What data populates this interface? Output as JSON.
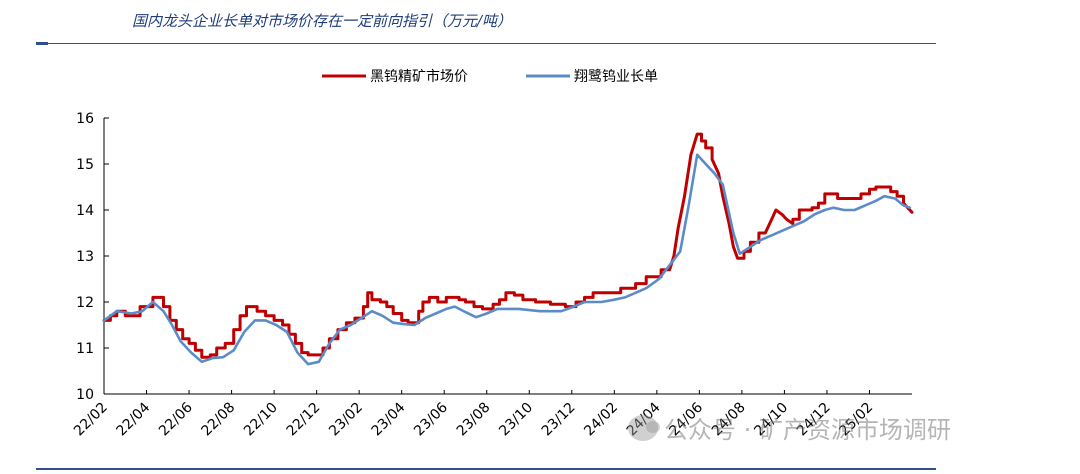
{
  "header": {
    "title": "国内龙头企业长单对市场价存在一定前向指引（万元/吨）"
  },
  "watermark": {
    "text": "公众号 · 矿产资源市场调研"
  },
  "chart_data": {
    "type": "line",
    "title": "国内龙头企业长单对市场价存在一定前向指引（万元/吨）",
    "xlabel": "",
    "ylabel": "",
    "ylim": [
      10,
      16
    ],
    "yticks": [
      10,
      11,
      12,
      13,
      14,
      15,
      16
    ],
    "x_range": [
      0,
      38.0
    ],
    "x_tick_labels": [
      "22/02",
      "22/04",
      "22/06",
      "22/08",
      "22/10",
      "22/12",
      "23/02",
      "23/04",
      "23/06",
      "23/08",
      "23/10",
      "23/12",
      "24/02",
      "24/04",
      "24/06",
      "24/08",
      "24/10",
      "24/12",
      "25/02"
    ],
    "x_tick_positions": [
      0,
      2,
      4,
      6,
      8,
      10,
      12,
      14,
      16,
      18,
      20,
      22,
      24,
      26,
      28,
      30,
      32,
      34,
      36
    ],
    "legend_position": "top-center",
    "grid": false,
    "series": [
      {
        "name": "黑钨精矿市场价",
        "color": "#c00000",
        "points": [
          [
            0,
            11.6
          ],
          [
            0.3,
            11.6
          ],
          [
            0.3,
            11.7
          ],
          [
            0.6,
            11.7
          ],
          [
            0.6,
            11.8
          ],
          [
            1.0,
            11.8
          ],
          [
            1.0,
            11.7
          ],
          [
            1.7,
            11.7
          ],
          [
            1.7,
            11.9
          ],
          [
            2.3,
            11.9
          ],
          [
            2.3,
            12.1
          ],
          [
            2.8,
            12.1
          ],
          [
            2.8,
            11.9
          ],
          [
            3.1,
            11.9
          ],
          [
            3.1,
            11.6
          ],
          [
            3.4,
            11.6
          ],
          [
            3.4,
            11.4
          ],
          [
            3.7,
            11.4
          ],
          [
            3.7,
            11.2
          ],
          [
            4.0,
            11.2
          ],
          [
            4.0,
            11.1
          ],
          [
            4.3,
            11.1
          ],
          [
            4.3,
            10.95
          ],
          [
            4.6,
            10.95
          ],
          [
            4.6,
            10.8
          ],
          [
            5.0,
            10.8
          ],
          [
            5.0,
            10.85
          ],
          [
            5.3,
            10.85
          ],
          [
            5.3,
            11.0
          ],
          [
            5.7,
            11.0
          ],
          [
            5.7,
            11.1
          ],
          [
            6.1,
            11.1
          ],
          [
            6.1,
            11.4
          ],
          [
            6.4,
            11.4
          ],
          [
            6.4,
            11.7
          ],
          [
            6.7,
            11.7
          ],
          [
            6.7,
            11.9
          ],
          [
            7.2,
            11.9
          ],
          [
            7.2,
            11.8
          ],
          [
            7.6,
            11.8
          ],
          [
            7.6,
            11.7
          ],
          [
            8.0,
            11.7
          ],
          [
            8.0,
            11.6
          ],
          [
            8.4,
            11.6
          ],
          [
            8.4,
            11.5
          ],
          [
            8.7,
            11.5
          ],
          [
            8.7,
            11.3
          ],
          [
            9.0,
            11.3
          ],
          [
            9.0,
            11.1
          ],
          [
            9.3,
            11.1
          ],
          [
            9.3,
            10.9
          ],
          [
            9.6,
            10.9
          ],
          [
            9.6,
            10.85
          ],
          [
            10.3,
            10.85
          ],
          [
            10.3,
            11.0
          ],
          [
            10.6,
            11.0
          ],
          [
            10.6,
            11.2
          ],
          [
            11.0,
            11.2
          ],
          [
            11.0,
            11.4
          ],
          [
            11.4,
            11.4
          ],
          [
            11.4,
            11.55
          ],
          [
            11.8,
            11.55
          ],
          [
            11.8,
            11.65
          ],
          [
            12.2,
            11.65
          ],
          [
            12.2,
            11.9
          ],
          [
            12.4,
            11.9
          ],
          [
            12.4,
            12.2
          ],
          [
            12.6,
            12.2
          ],
          [
            12.6,
            12.05
          ],
          [
            13.0,
            12.05
          ],
          [
            13.0,
            12.0
          ],
          [
            13.3,
            12.0
          ],
          [
            13.3,
            11.9
          ],
          [
            13.6,
            11.9
          ],
          [
            13.6,
            11.75
          ],
          [
            14.0,
            11.75
          ],
          [
            14.0,
            11.6
          ],
          [
            14.3,
            11.6
          ],
          [
            14.3,
            11.55
          ],
          [
            14.8,
            11.55
          ],
          [
            14.8,
            11.8
          ],
          [
            15.0,
            11.8
          ],
          [
            15.0,
            12.0
          ],
          [
            15.3,
            12.0
          ],
          [
            15.3,
            12.1
          ],
          [
            15.7,
            12.1
          ],
          [
            15.7,
            12.0
          ],
          [
            16.1,
            12.0
          ],
          [
            16.1,
            12.1
          ],
          [
            16.7,
            12.1
          ],
          [
            16.7,
            12.05
          ],
          [
            17.0,
            12.05
          ],
          [
            17.0,
            12.0
          ],
          [
            17.4,
            12.0
          ],
          [
            17.4,
            11.9
          ],
          [
            17.8,
            11.9
          ],
          [
            17.8,
            11.85
          ],
          [
            18.3,
            11.85
          ],
          [
            18.3,
            11.95
          ],
          [
            18.6,
            11.95
          ],
          [
            18.6,
            12.05
          ],
          [
            18.9,
            12.05
          ],
          [
            18.9,
            12.2
          ],
          [
            19.3,
            12.2
          ],
          [
            19.3,
            12.15
          ],
          [
            19.7,
            12.15
          ],
          [
            19.7,
            12.05
          ],
          [
            20.3,
            12.05
          ],
          [
            20.3,
            12.0
          ],
          [
            21.0,
            12.0
          ],
          [
            21.0,
            11.95
          ],
          [
            21.7,
            11.95
          ],
          [
            21.7,
            11.9
          ],
          [
            22.2,
            11.9
          ],
          [
            22.2,
            12.0
          ],
          [
            22.6,
            12.0
          ],
          [
            22.6,
            12.1
          ],
          [
            23.0,
            12.1
          ],
          [
            23.0,
            12.2
          ],
          [
            24.3,
            12.2
          ],
          [
            24.3,
            12.3
          ],
          [
            25.0,
            12.3
          ],
          [
            25.0,
            12.4
          ],
          [
            25.5,
            12.4
          ],
          [
            25.5,
            12.55
          ],
          [
            26.2,
            12.55
          ],
          [
            26.2,
            12.7
          ],
          [
            26.6,
            12.7
          ],
          [
            26.8,
            13.0
          ],
          [
            27.0,
            13.6
          ],
          [
            27.3,
            14.3
          ],
          [
            27.6,
            15.2
          ],
          [
            27.9,
            15.65
          ],
          [
            28.1,
            15.65
          ],
          [
            28.1,
            15.5
          ],
          [
            28.3,
            15.5
          ],
          [
            28.3,
            15.35
          ],
          [
            28.6,
            15.35
          ],
          [
            28.6,
            15.1
          ],
          [
            28.9,
            14.8
          ],
          [
            29.1,
            14.3
          ],
          [
            29.4,
            13.7
          ],
          [
            29.6,
            13.2
          ],
          [
            29.8,
            12.95
          ],
          [
            30.1,
            12.95
          ],
          [
            30.1,
            13.1
          ],
          [
            30.4,
            13.1
          ],
          [
            30.4,
            13.3
          ],
          [
            30.8,
            13.3
          ],
          [
            30.8,
            13.5
          ],
          [
            31.1,
            13.5
          ],
          [
            31.4,
            13.8
          ],
          [
            31.6,
            14.0
          ],
          [
            31.9,
            13.9
          ],
          [
            32.1,
            13.8
          ],
          [
            32.4,
            13.7
          ],
          [
            32.4,
            13.8
          ],
          [
            32.7,
            13.8
          ],
          [
            32.7,
            14.0
          ],
          [
            33.3,
            14.0
          ],
          [
            33.3,
            14.05
          ],
          [
            33.6,
            14.05
          ],
          [
            33.6,
            14.15
          ],
          [
            33.9,
            14.15
          ],
          [
            33.9,
            14.35
          ],
          [
            34.5,
            14.35
          ],
          [
            34.5,
            14.25
          ],
          [
            35.6,
            14.25
          ],
          [
            35.6,
            14.35
          ],
          [
            36.0,
            14.35
          ],
          [
            36.0,
            14.45
          ],
          [
            36.3,
            14.45
          ],
          [
            36.3,
            14.5
          ],
          [
            37.0,
            14.5
          ],
          [
            37.0,
            14.4
          ],
          [
            37.3,
            14.4
          ],
          [
            37.3,
            14.3
          ],
          [
            37.6,
            14.3
          ],
          [
            37.6,
            14.15
          ],
          [
            37.8,
            14.05
          ],
          [
            38.0,
            13.95
          ]
        ]
      },
      {
        "name": "翔鹭钨业长单",
        "color": "#5b8cc8",
        "points": [
          [
            0,
            11.6
          ],
          [
            0.6,
            11.8
          ],
          [
            1.3,
            11.75
          ],
          [
            1.8,
            11.8
          ],
          [
            2.3,
            12.0
          ],
          [
            2.8,
            11.8
          ],
          [
            3.2,
            11.5
          ],
          [
            3.6,
            11.15
          ],
          [
            4.1,
            10.9
          ],
          [
            4.6,
            10.7
          ],
          [
            5.1,
            10.78
          ],
          [
            5.6,
            10.8
          ],
          [
            6.1,
            10.95
          ],
          [
            6.6,
            11.35
          ],
          [
            7.1,
            11.6
          ],
          [
            7.6,
            11.6
          ],
          [
            8.1,
            11.5
          ],
          [
            8.6,
            11.35
          ],
          [
            9.1,
            10.9
          ],
          [
            9.6,
            10.65
          ],
          [
            10.1,
            10.7
          ],
          [
            10.6,
            11.1
          ],
          [
            11.1,
            11.4
          ],
          [
            11.6,
            11.5
          ],
          [
            12.1,
            11.65
          ],
          [
            12.6,
            11.8
          ],
          [
            13.1,
            11.7
          ],
          [
            13.6,
            11.55
          ],
          [
            14.1,
            11.52
          ],
          [
            14.6,
            11.5
          ],
          [
            15.1,
            11.65
          ],
          [
            15.6,
            11.75
          ],
          [
            16.1,
            11.85
          ],
          [
            16.5,
            11.9
          ],
          [
            17.0,
            11.78
          ],
          [
            17.5,
            11.67
          ],
          [
            18.0,
            11.75
          ],
          [
            18.5,
            11.85
          ],
          [
            19.5,
            11.85
          ],
          [
            20.5,
            11.8
          ],
          [
            21.5,
            11.8
          ],
          [
            22.1,
            11.9
          ],
          [
            22.6,
            12.0
          ],
          [
            23.4,
            12.0
          ],
          [
            24.0,
            12.05
          ],
          [
            24.5,
            12.1
          ],
          [
            25.0,
            12.2
          ],
          [
            25.5,
            12.3
          ],
          [
            26.1,
            12.5
          ],
          [
            26.6,
            12.8
          ],
          [
            27.1,
            13.1
          ],
          [
            27.5,
            14.1
          ],
          [
            27.9,
            15.2
          ],
          [
            28.3,
            15.0
          ],
          [
            28.7,
            14.8
          ],
          [
            29.1,
            14.55
          ],
          [
            29.6,
            13.5
          ],
          [
            29.9,
            13.05
          ],
          [
            30.4,
            13.2
          ],
          [
            30.9,
            13.35
          ],
          [
            31.4,
            13.45
          ],
          [
            31.9,
            13.55
          ],
          [
            32.4,
            13.65
          ],
          [
            32.9,
            13.75
          ],
          [
            33.4,
            13.9
          ],
          [
            33.9,
            14.0
          ],
          [
            34.3,
            14.05
          ],
          [
            34.8,
            14.0
          ],
          [
            35.3,
            14.0
          ],
          [
            35.8,
            14.1
          ],
          [
            36.3,
            14.2
          ],
          [
            36.7,
            14.3
          ],
          [
            37.2,
            14.25
          ],
          [
            37.6,
            14.1
          ],
          [
            37.9,
            14.05
          ]
        ]
      }
    ]
  }
}
